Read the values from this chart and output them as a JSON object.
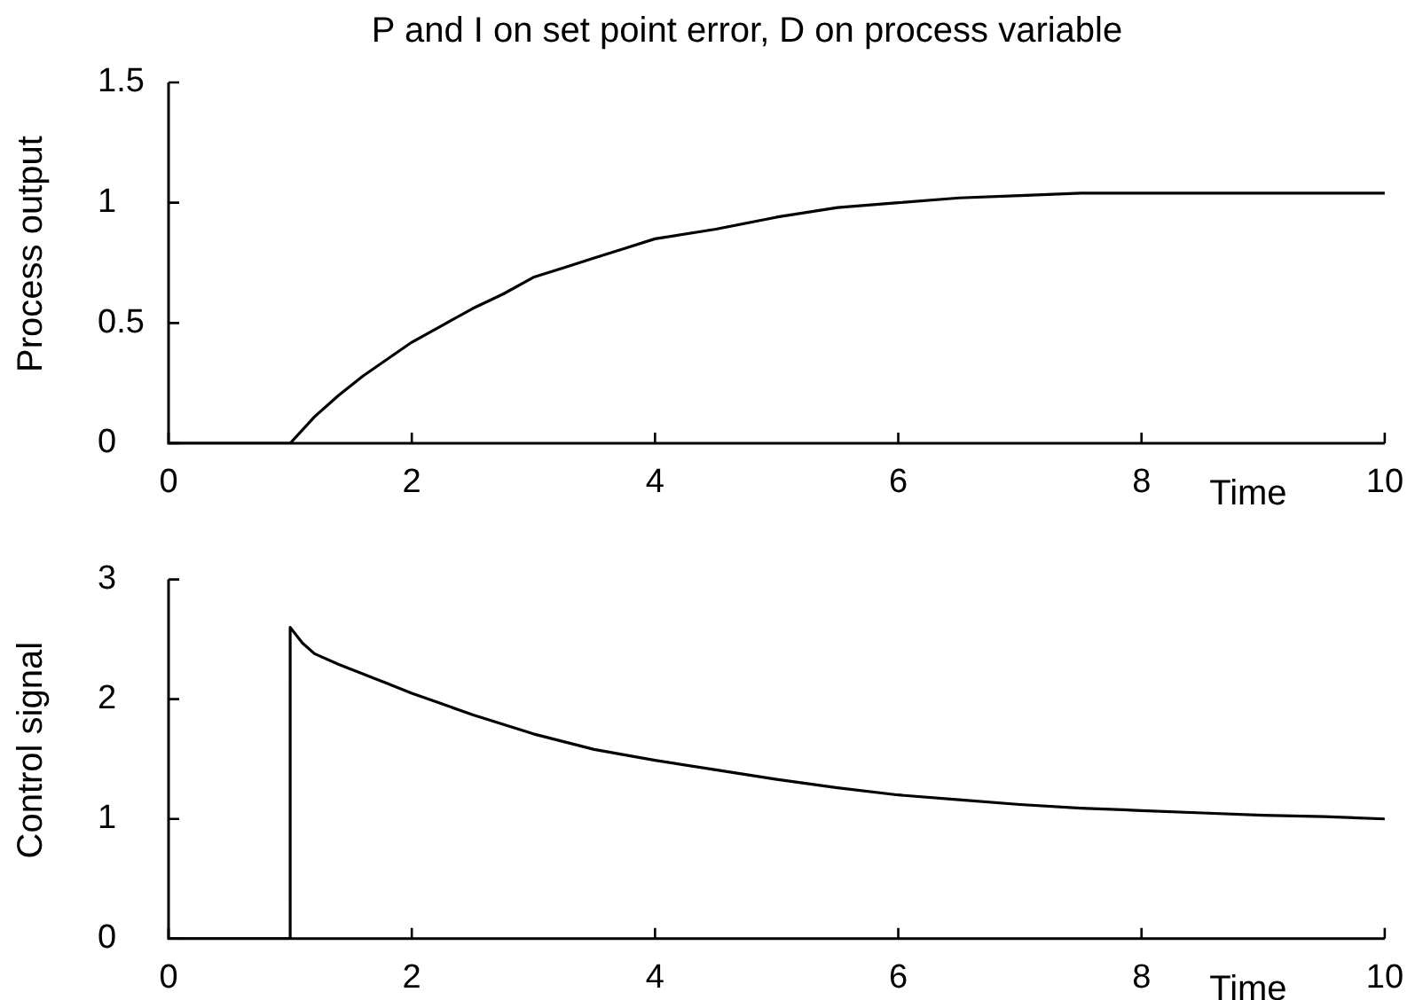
{
  "chart_data": [
    {
      "type": "line",
      "title": "P and I on set point error, D on process variable",
      "xlabel": "Time",
      "ylabel": "Process output",
      "x": [
        0,
        1,
        1.2,
        1.4,
        1.6,
        1.8,
        2,
        2.25,
        2.5,
        2.75,
        3,
        3.25,
        3.5,
        3.75,
        4,
        4.5,
        5,
        5.5,
        6,
        6.5,
        7,
        7.5,
        8,
        9,
        10
      ],
      "values": [
        0,
        0,
        0.11,
        0.2,
        0.28,
        0.35,
        0.42,
        0.49,
        0.56,
        0.62,
        0.69,
        0.73,
        0.77,
        0.81,
        0.85,
        0.89,
        0.94,
        0.98,
        1.0,
        1.02,
        1.03,
        1.04,
        1.04,
        1.04,
        1.04
      ],
      "color": "#000000",
      "xlim": [
        0,
        10
      ],
      "xticks": [
        0,
        2,
        4,
        6,
        8,
        10
      ],
      "ylim": [
        0,
        1.5
      ],
      "yticks": [
        0,
        0.5,
        1,
        1.5
      ],
      "marker": "none"
    },
    {
      "type": "line",
      "xlabel": "Time",
      "ylabel": "Control signal",
      "x": [
        0,
        1,
        1,
        1.1,
        1.2,
        1.4,
        1.6,
        1.8,
        2,
        2.25,
        2.5,
        2.75,
        3,
        3.5,
        4,
        4.5,
        5,
        5.5,
        6,
        6.5,
        7,
        7.5,
        8,
        8.5,
        9,
        9.5,
        10
      ],
      "values": [
        0,
        0,
        2.6,
        2.47,
        2.38,
        2.29,
        2.21,
        2.13,
        2.05,
        1.96,
        1.87,
        1.79,
        1.71,
        1.58,
        1.49,
        1.41,
        1.33,
        1.26,
        1.2,
        1.16,
        1.12,
        1.09,
        1.07,
        1.05,
        1.03,
        1.02,
        1.0
      ],
      "color": "#000000",
      "xlim": [
        0,
        10
      ],
      "xticks": [
        0,
        2,
        4,
        6,
        8,
        10
      ],
      "ylim": [
        0,
        3
      ],
      "yticks": [
        0,
        1,
        2,
        3
      ],
      "marker": "none"
    }
  ]
}
